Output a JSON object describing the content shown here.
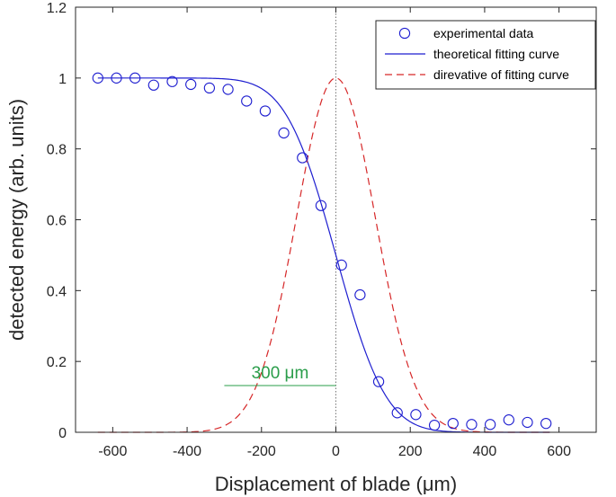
{
  "chart_data": {
    "type": "scatter",
    "title": "",
    "xlabel": "Displacement of blade (μm)",
    "ylabel": "detected energy (arb. units)",
    "xlim": [
      -700,
      700
    ],
    "ylim": [
      0,
      1.2
    ],
    "xticks": [
      -600,
      -400,
      -200,
      0,
      200,
      400,
      600
    ],
    "xtick_labels": [
      "-600",
      "-400",
      "-200",
      "0",
      "200",
      "400",
      "600"
    ],
    "yticks": [
      0,
      0.2,
      0.4,
      0.6,
      0.8,
      1,
      1.2
    ],
    "ytick_labels": [
      "0",
      "0.2",
      "0.4",
      "0.6",
      "0.8",
      "1",
      "1.2"
    ],
    "grid": false,
    "legend_position": "top-right",
    "series": [
      {
        "name": "experimental data",
        "kind": "markers",
        "marker": "circle",
        "color": "#1f1fd0",
        "x": [
          -640,
          -590,
          -540,
          -490,
          -440,
          -390,
          -340,
          -290,
          -240,
          -190,
          -140,
          -90,
          -40,
          15,
          65,
          115,
          165,
          215,
          265,
          315,
          365,
          415,
          465,
          515,
          565
        ],
        "y": [
          1.0,
          1.0,
          1.0,
          0.98,
          0.99,
          0.982,
          0.972,
          0.968,
          0.935,
          0.907,
          0.845,
          0.775,
          0.64,
          0.472,
          0.388,
          0.143,
          0.055,
          0.05,
          0.02,
          0.025,
          0.022,
          0.022,
          0.035,
          0.028,
          0.025
        ]
      },
      {
        "name": "theoretical fitting curve",
        "kind": "line",
        "style": "solid",
        "color": "#1f1fd0",
        "function": "erfc",
        "center": 0,
        "width": 150,
        "x_range": [
          -640,
          575
        ]
      },
      {
        "name": "direvative of fitting curve",
        "kind": "line",
        "style": "dashed",
        "color": "#d62728",
        "function": "gaussian",
        "center": 0,
        "width": 150,
        "peak": 1.0,
        "x_range": [
          -640,
          575
        ]
      }
    ],
    "reference_line": {
      "x": 0,
      "style": "dotted",
      "color": "#777777"
    },
    "annotations": [
      {
        "text": "300 μm",
        "x_from": -300,
        "x_to": 0,
        "y": 0.132,
        "color": "#2a9d4a"
      }
    ]
  }
}
